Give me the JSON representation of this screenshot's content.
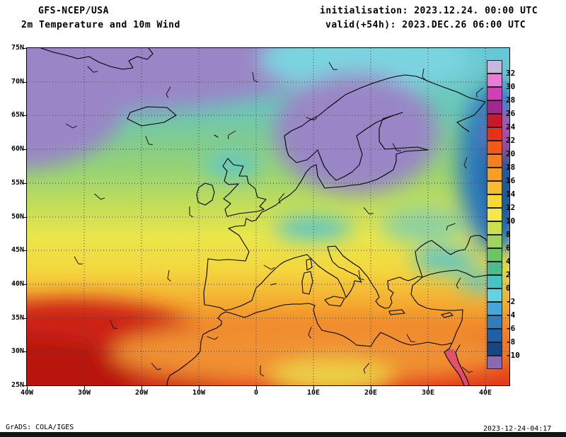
{
  "header": {
    "model": "GFS-NCEP/USA",
    "product": "2m Temperature and 10m Wind",
    "initialisation": "initialisation: 2023.12.24. 00:00 UTC",
    "valid": "valid(+54h): 2023.DEC.26 06:00 UTC"
  },
  "map": {
    "lat_labels": [
      "75N",
      "70N",
      "65N",
      "60N",
      "55N",
      "50N",
      "45N",
      "40N",
      "35N",
      "30N",
      "25N"
    ],
    "lon_labels": [
      "40W",
      "30W",
      "20W",
      "10W",
      "0",
      "10E",
      "20E",
      "30E",
      "40E"
    ]
  },
  "colorbar": {
    "labels": [
      "32",
      "30",
      "28",
      "26",
      "24",
      "22",
      "20",
      "18",
      "16",
      "14",
      "12",
      "10",
      "8",
      "6",
      "4",
      "2",
      "0",
      "-2",
      "-4",
      "-6",
      "-8",
      "-10"
    ],
    "colors": [
      "#c8b6e0",
      "#ec7ad8",
      "#d040b8",
      "#a02890",
      "#c81830",
      "#e63218",
      "#f05a1a",
      "#f67e1c",
      "#f89e24",
      "#f8bc2c",
      "#f6d836",
      "#f0e84c",
      "#c8e052",
      "#9cd45c",
      "#6cc464",
      "#4cbc8c",
      "#44c4c4",
      "#64d2e2",
      "#46a6d8",
      "#2e7ec0",
      "#2060a6",
      "#174686",
      "#8a68b4"
    ]
  },
  "footer": {
    "credit": "GrADS: COLA/IGES",
    "generated": "2023-12-24-04:17"
  }
}
